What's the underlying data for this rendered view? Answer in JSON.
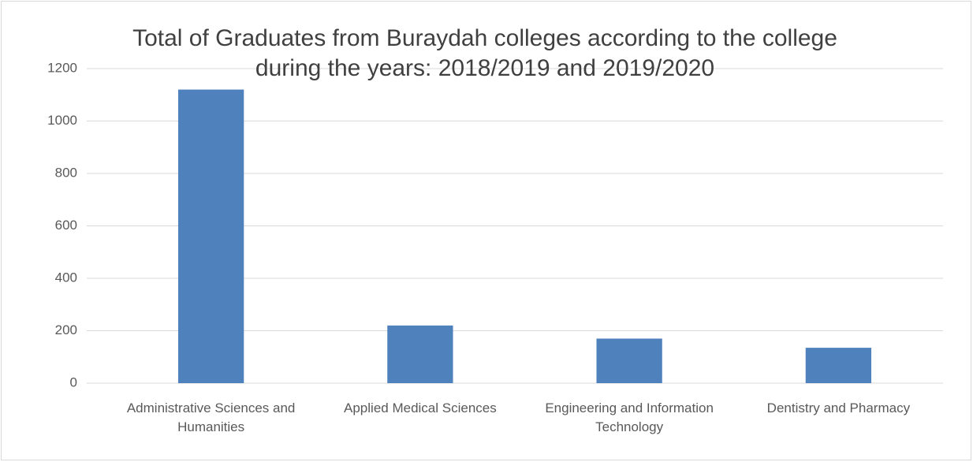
{
  "chart_data": {
    "type": "bar",
    "title": "Total of Graduates from Buraydah colleges according to the college during the years: 2018/2019 and 2019/2020",
    "categories": [
      "Administrative Sciences and Humanities",
      "Applied Medical Sciences",
      "Engineering and Information Technology",
      "Dentistry and Pharmacy"
    ],
    "values": [
      1120,
      220,
      170,
      135
    ],
    "color": "#4f81bd",
    "ylim": [
      0,
      1200
    ],
    "yticks": [
      0,
      200,
      400,
      600,
      800,
      1000,
      1200
    ],
    "grid": true
  }
}
